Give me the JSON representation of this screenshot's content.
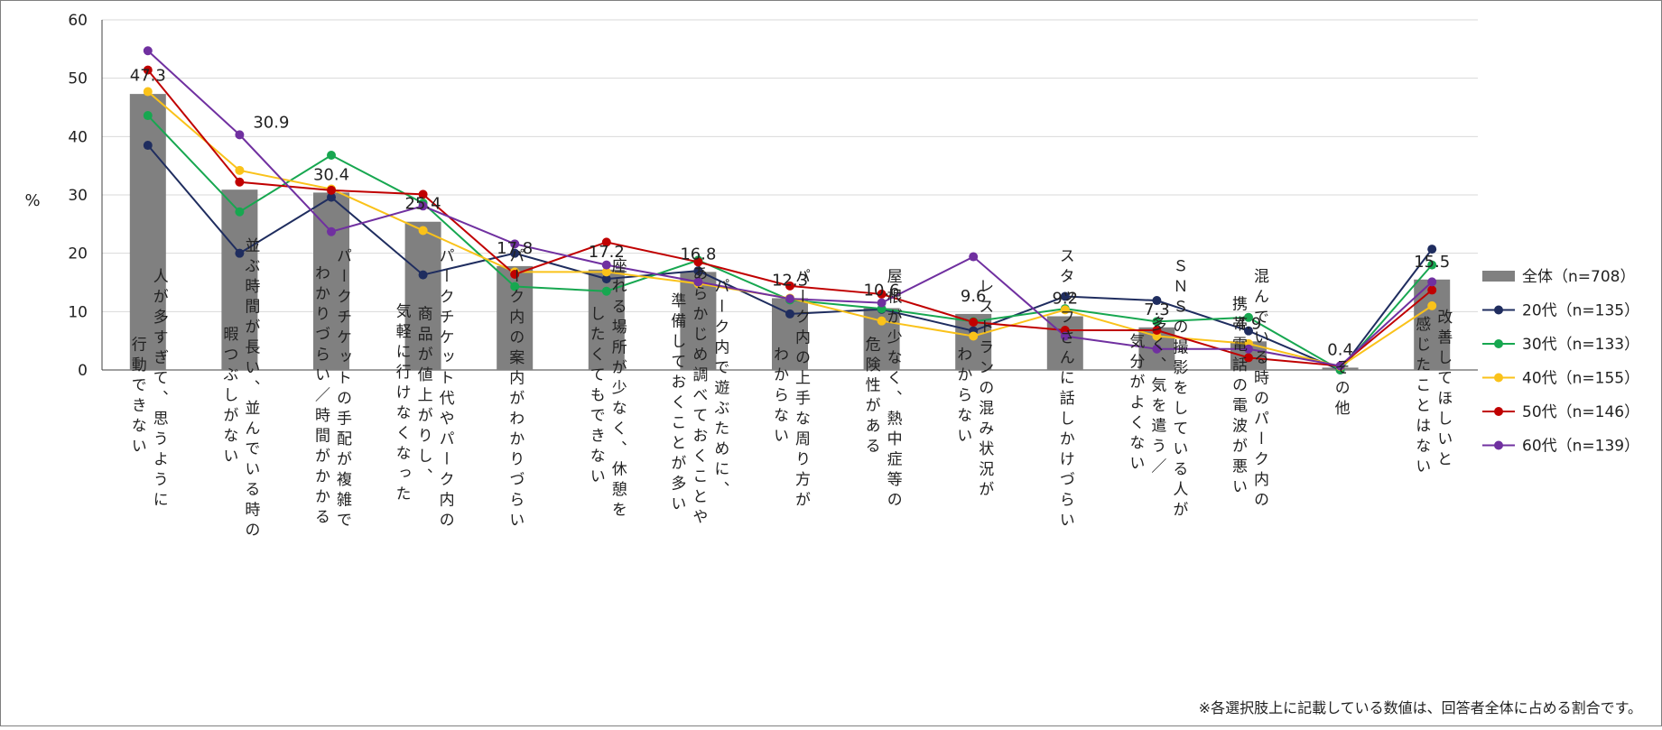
{
  "chart_data": {
    "type": "bar+line",
    "ylabel": "%",
    "ylim": [
      0,
      60
    ],
    "yticks": [
      0,
      10,
      20,
      30,
      40,
      50,
      60
    ],
    "grid": true,
    "legend_position": "right",
    "categories": [
      [
        "人が多すぎて、思うように",
        "行動できない"
      ],
      [
        "並ぶ時間が長い、並んでいる時の",
        "暇つぶしがない"
      ],
      [
        "パークチケットの手配が複雑で",
        "わかりづらい／時間がかかる"
      ],
      [
        "パークチケット代やパーク内の",
        "商品が値上がりし、",
        "気軽に行けなくなった"
      ],
      [
        "パーク内の案内がわかりづらい"
      ],
      [
        "座れる場所が少なく、休憩を",
        "したくてもできない"
      ],
      [
        "パーク内で遊ぶために、",
        "あらかじめ調べておくことや",
        "準備しておくことが多い"
      ],
      [
        "パーク内の上手な周り方が",
        "わからない"
      ],
      [
        "屋根が少なく、熱中症等の",
        "危険性がある"
      ],
      [
        "レストランの混み状況が",
        "わからない"
      ],
      [
        "スタッフさんに話しかけづらい"
      ],
      [
        "ＳＮＳの撮影をしている人が",
        "多く、気を遣う／",
        "気分がよくない"
      ],
      [
        "混んでいる時のパーク内の",
        "携帯電話の電波が悪い"
      ],
      [
        "その他"
      ],
      [
        "改善してほしいと",
        "感じたことはない"
      ]
    ],
    "bar_series": {
      "name": "全体（n=708）",
      "color": "#808080",
      "values": [
        47.3,
        30.9,
        30.4,
        25.4,
        17.8,
        17.2,
        16.8,
        12.3,
        10.6,
        9.6,
        9.2,
        7.3,
        4.9,
        0.4,
        15.5
      ],
      "labels": [
        "47.3",
        "30.9",
        "30.4",
        "25.4",
        "17.8",
        "17.2",
        "16.8",
        "12.3",
        "10.6",
        "9.6",
        "9.2",
        "7.3",
        "4.9",
        "0.4",
        "15.5"
      ]
    },
    "line_series": [
      {
        "name": "20代（n=135）",
        "color": "#1f2d5f",
        "values": [
          38.5,
          20.0,
          29.6,
          16.3,
          20.0,
          15.6,
          17.0,
          9.6,
          10.4,
          6.7,
          12.6,
          11.9,
          6.7,
          0.0,
          20.7
        ]
      },
      {
        "name": "30代（n=133）",
        "color": "#17a750",
        "values": [
          43.6,
          27.1,
          36.8,
          28.6,
          14.3,
          13.5,
          18.8,
          12.0,
          10.5,
          8.3,
          10.5,
          8.3,
          9.0,
          0.0,
          18.0
        ]
      },
      {
        "name": "40代（n=155）",
        "color": "#fac21a",
        "values": [
          47.7,
          34.2,
          31.0,
          23.9,
          16.8,
          16.8,
          14.8,
          12.3,
          8.4,
          5.8,
          10.3,
          5.8,
          4.5,
          0.6,
          11.0
        ]
      },
      {
        "name": "50代（n=146）",
        "color": "#c00000",
        "values": [
          51.4,
          32.2,
          30.8,
          30.1,
          16.4,
          21.9,
          18.5,
          14.4,
          13.0,
          8.2,
          6.8,
          6.8,
          2.1,
          0.7,
          13.7
        ]
      },
      {
        "name": "60代（n=139）",
        "color": "#7030a0",
        "values": [
          54.7,
          40.3,
          23.7,
          28.1,
          21.6,
          18.0,
          15.1,
          12.2,
          11.5,
          19.4,
          5.8,
          3.6,
          3.6,
          0.7,
          15.1
        ]
      }
    ]
  },
  "footnote": "※各選択肢上に記載している数値は、回答者全体に占める割合です。"
}
